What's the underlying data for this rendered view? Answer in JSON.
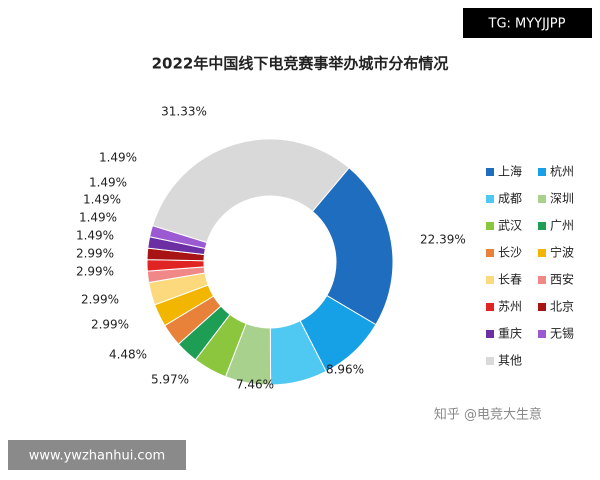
{
  "chart_data": {
    "type": "donut",
    "title": "2022年中国线下电竞赛事举办城市分布情况",
    "categories": [
      "上海",
      "杭州",
      "成都",
      "深圳",
      "武汉",
      "广州",
      "长沙",
      "宁波",
      "长春",
      "西安",
      "苏州",
      "北京",
      "重庆",
      "无锡",
      "其他"
    ],
    "values": [
      22.39,
      8.96,
      7.46,
      5.97,
      4.48,
      2.99,
      2.99,
      2.99,
      2.99,
      1.49,
      1.49,
      1.49,
      1.49,
      1.49,
      31.33
    ],
    "value_labels": [
      "22.39%",
      "8.96%",
      "7.46%",
      "5.97%",
      "4.48%",
      "2.99%",
      "2.99%",
      "2.99%",
      "2.99%",
      "1.49%",
      "1.49%",
      "1.49%",
      "1.49%",
      "1.49%",
      "31.33%"
    ],
    "colors": [
      "#1f6dbf",
      "#16a0e6",
      "#4fc9f2",
      "#a9d18e",
      "#8cc63f",
      "#1e9e55",
      "#e8823a",
      "#f2b600",
      "#fbd97c",
      "#f08888",
      "#e02323",
      "#a81414",
      "#6b2fa3",
      "#9c5ad2",
      "#d9d9d9"
    ],
    "legend": "right"
  },
  "watermarks": {
    "top_right": "TG: MYYJJPP",
    "bottom_left": "www.ywzhanhui.com",
    "source": "知乎 @电竞大生意"
  }
}
